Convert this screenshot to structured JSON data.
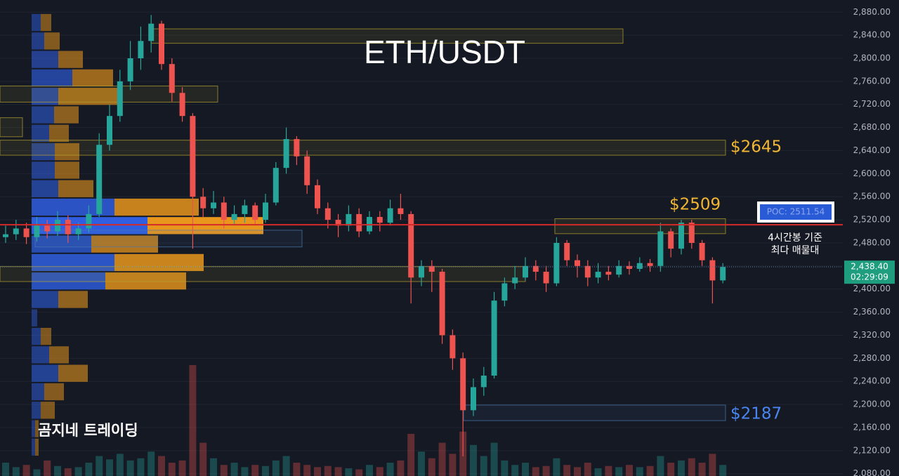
{
  "chart_data": {
    "type": "candlestick",
    "title": "ETH/USDT",
    "watermark": "곰지네 트레이딩",
    "ylim": [
      2076,
      2901
    ],
    "yticks": [
      {
        "value": 2080,
        "label": "2,080.00"
      },
      {
        "value": 2120,
        "label": "2,120.00"
      },
      {
        "value": 2160,
        "label": "2,160.00"
      },
      {
        "value": 2200,
        "label": "2,200.00"
      },
      {
        "value": 2240,
        "label": "2,240.00"
      },
      {
        "value": 2280,
        "label": "2,280.00"
      },
      {
        "value": 2320,
        "label": "2,320.00"
      },
      {
        "value": 2360,
        "label": "2,360.00"
      },
      {
        "value": 2400,
        "label": "2,400.00"
      },
      {
        "value": 2440,
        "label": "2,440.00"
      },
      {
        "value": 2480,
        "label": "2,480.00"
      },
      {
        "value": 2520,
        "label": "2,520.00"
      },
      {
        "value": 2560,
        "label": "2,560.00"
      },
      {
        "value": 2600,
        "label": "2,600.00"
      },
      {
        "value": 2640,
        "label": "2,640.00"
      },
      {
        "value": 2680,
        "label": "2,680.00"
      },
      {
        "value": 2720,
        "label": "2,720.00"
      },
      {
        "value": 2760,
        "label": "2,760.00"
      },
      {
        "value": 2800,
        "label": "2,800.00"
      },
      {
        "value": 2840,
        "label": "2,840.00"
      },
      {
        "value": 2880,
        "label": "2,880.00"
      }
    ],
    "grid": true,
    "up_color": "#26a69a",
    "down_color": "#ef5350",
    "open": [
      2490,
      2495,
      2505,
      2490,
      2510,
      2500,
      2520,
      2495,
      2505,
      2530,
      2650,
      2700,
      2760,
      2800,
      2830,
      2860,
      2790,
      2740,
      2700,
      2560,
      2540,
      2550,
      2520,
      2530,
      2545,
      2520,
      2550,
      2610,
      2660,
      2630,
      2580,
      2540,
      2520,
      2510,
      2530,
      2500,
      2525,
      2515,
      2540,
      2530,
      2420,
      2440,
      2430,
      2320,
      2280,
      2190,
      2230,
      2250,
      2380,
      2410,
      2420,
      2440,
      2430,
      2410,
      2480,
      2450,
      2440,
      2420,
      2430,
      2425,
      2440,
      2435,
      2445,
      2440,
      2500,
      2470,
      2515,
      2480,
      2450,
      2415
    ],
    "high": [
      2510,
      2520,
      2515,
      2525,
      2520,
      2535,
      2528,
      2515,
      2545,
      2670,
      2720,
      2780,
      2830,
      2855,
      2875,
      2865,
      2800,
      2750,
      2705,
      2575,
      2570,
      2560,
      2545,
      2555,
      2550,
      2565,
      2620,
      2680,
      2665,
      2640,
      2590,
      2550,
      2530,
      2545,
      2540,
      2535,
      2535,
      2555,
      2565,
      2535,
      2450,
      2450,
      2435,
      2330,
      2290,
      2245,
      2265,
      2395,
      2420,
      2440,
      2455,
      2450,
      2440,
      2490,
      2485,
      2460,
      2450,
      2445,
      2440,
      2450,
      2448,
      2455,
      2452,
      2515,
      2505,
      2520,
      2520,
      2485,
      2455,
      2445
    ],
    "low": [
      2480,
      2485,
      2478,
      2482,
      2488,
      2492,
      2480,
      2485,
      2498,
      2525,
      2640,
      2690,
      2745,
      2780,
      2810,
      2780,
      2725,
      2690,
      2470,
      2525,
      2530,
      2505,
      2510,
      2515,
      2510,
      2515,
      2545,
      2600,
      2615,
      2565,
      2530,
      2505,
      2490,
      2500,
      2490,
      2495,
      2500,
      2510,
      2520,
      2375,
      2405,
      2395,
      2305,
      2260,
      2110,
      2180,
      2215,
      2245,
      2370,
      2400,
      2415,
      2415,
      2395,
      2405,
      2440,
      2420,
      2405,
      2410,
      2415,
      2420,
      2425,
      2430,
      2430,
      2430,
      2455,
      2460,
      2470,
      2440,
      2375,
      2410
    ],
    "close": [
      2495,
      2505,
      2490,
      2510,
      2500,
      2520,
      2495,
      2505,
      2530,
      2650,
      2700,
      2760,
      2800,
      2830,
      2860,
      2790,
      2740,
      2700,
      2560,
      2540,
      2550,
      2520,
      2530,
      2545,
      2520,
      2550,
      2610,
      2660,
      2630,
      2580,
      2540,
      2520,
      2510,
      2530,
      2500,
      2525,
      2515,
      2540,
      2530,
      2420,
      2440,
      2430,
      2320,
      2280,
      2190,
      2230,
      2250,
      2380,
      2410,
      2420,
      2440,
      2430,
      2410,
      2480,
      2450,
      2440,
      2420,
      2430,
      2425,
      2440,
      2435,
      2445,
      2440,
      2500,
      2470,
      2515,
      2480,
      2450,
      2415,
      2438.4
    ],
    "volume": [
      12,
      8,
      10,
      6,
      14,
      9,
      7,
      8,
      12,
      18,
      15,
      20,
      14,
      16,
      22,
      18,
      12,
      14,
      100,
      30,
      16,
      10,
      12,
      8,
      10,
      9,
      14,
      18,
      12,
      10,
      8,
      9,
      8,
      7,
      6,
      10,
      8,
      12,
      14,
      38,
      22,
      16,
      30,
      20,
      40,
      28,
      18,
      30,
      14,
      10,
      12,
      8,
      9,
      16,
      10,
      8,
      12,
      7,
      9,
      8,
      10,
      8,
      9,
      18,
      12,
      14,
      16,
      12,
      20,
      10
    ],
    "volume_profile": {
      "bins": [
        2878,
        2846,
        2814,
        2782,
        2750,
        2718,
        2686,
        2654,
        2622,
        2590,
        2558,
        2526,
        2494,
        2462,
        2430,
        2398,
        2366,
        2334,
        2302,
        2270,
        2238,
        2206,
        2174,
        2142,
        2110
      ],
      "series": [
        {
          "name": "buy",
          "color": "#2f5fe0",
          "values": [
            13,
            18,
            38,
            58,
            38,
            32,
            25,
            33,
            33,
            38,
            118,
            165,
            85,
            118,
            105,
            38,
            8,
            13,
            25,
            38,
            18,
            13,
            5,
            5
          ]
        },
        {
          "name": "sell",
          "color": "#e8961c",
          "values": [
            15,
            22,
            35,
            58,
            85,
            35,
            28,
            35,
            35,
            50,
            120,
            165,
            95,
            127,
            115,
            42,
            0,
            15,
            28,
            42,
            28,
            20,
            5,
            5
          ]
        }
      ]
    },
    "zones": [
      {
        "low": 2826,
        "high": 2851,
        "color": "#b8a22e"
      },
      {
        "low": 2724,
        "high": 2752,
        "color": "#b8a22e"
      },
      {
        "low": 2664,
        "high": 2697,
        "color": "#b8a22e"
      },
      {
        "low": 2632,
        "high": 2658,
        "color": "#b8a22e"
      },
      {
        "low": 2496,
        "high": 2522,
        "color": "#b8a22e"
      },
      {
        "low": 2473,
        "high": 2502,
        "color": "#4a7ab0"
      },
      {
        "low": 2413,
        "high": 2439,
        "color": "#b8a22e"
      },
      {
        "low": 2172,
        "high": 2199,
        "color": "#4a7ab0"
      }
    ],
    "level_labels": [
      {
        "text": "$2645",
        "color": "#f2b632"
      },
      {
        "text": "$2509",
        "color": "#f2b632"
      },
      {
        "text": "$2187",
        "color": "#4a86f0"
      }
    ],
    "poc": 2511.54,
    "poc_label": "POC: 2511.54",
    "poc_color": "#d42a2a",
    "poc_note": [
      "4시간봉 기준",
      "최다 매물대"
    ],
    "last_price": 2438.4,
    "last_price_label": "2,438.40",
    "countdown": "02:29:09"
  }
}
